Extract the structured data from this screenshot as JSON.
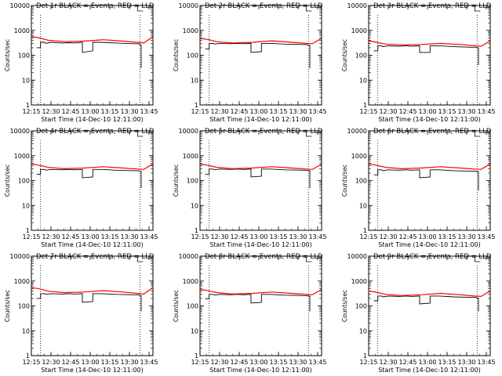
{
  "common": {
    "ylabel": "Counts/sec",
    "xlabel": "Start Time (14-Dec-10 12:11:00)",
    "x_tick_labels": [
      "12:15",
      "12:30",
      "12:45",
      "13:00",
      "13:15",
      "13:30",
      "13:45"
    ],
    "y_tick_labels": [
      "1",
      "10",
      "100",
      "1000",
      "10000"
    ],
    "colors": {
      "events": "#000000",
      "lld": "#ff0000",
      "background": "#ffffff"
    }
  },
  "chart_data": [
    {
      "type": "line",
      "title": "Det 1r BLACK = Events, RED = LLD",
      "xlabel": "Start Time (14-Dec-10 12:11:00)",
      "ylabel": "Counts/sec",
      "x_range": [
        "12:15",
        "13:48"
      ],
      "ylim": [
        1,
        10000
      ],
      "y_scale": "log",
      "vlines": [
        "12:22",
        "13:38"
      ],
      "series": [
        {
          "name": "Events",
          "color": "#000000",
          "x": [
            "12:15",
            "12:19",
            "12:19",
            "12:22",
            "12:22",
            "12:25",
            "12:26",
            "12:30",
            "12:38",
            "12:44",
            "12:48",
            "12:54",
            "12:54",
            "13:02",
            "13:02",
            "13:09",
            "13:20",
            "13:33",
            "13:37",
            "13:38",
            "13:39",
            "13:39"
          ],
          "y": [
            null,
            200,
            200,
            200,
            330,
            330,
            300,
            330,
            310,
            320,
            310,
            330,
            130,
            150,
            330,
            330,
            310,
            290,
            290,
            260,
            260,
            30
          ]
        },
        {
          "name": "LLD",
          "color": "#ff0000",
          "x": [
            "12:15",
            "12:20",
            "12:28",
            "12:40",
            "12:55",
            "13:10",
            "13:25",
            "13:36",
            "13:41",
            "13:48"
          ],
          "y": [
            560,
            510,
            400,
            350,
            370,
            420,
            370,
            330,
            310,
            560
          ]
        }
      ]
    },
    {
      "type": "line",
      "title": "Det 2r BLACK = Events, RED = LLD",
      "xlabel": "Start Time (14-Dec-10 12:11:00)",
      "ylabel": "Counts/sec",
      "x_range": [
        "12:15",
        "13:48"
      ],
      "ylim": [
        1,
        10000
      ],
      "y_scale": "log",
      "vlines": [
        "12:22",
        "13:38"
      ],
      "series": [
        {
          "name": "Events",
          "color": "#000000",
          "x": [
            "12:15",
            "12:19",
            "12:19",
            "12:22",
            "12:22",
            "12:25",
            "12:26",
            "12:30",
            "12:38",
            "12:44",
            "12:48",
            "12:54",
            "12:54",
            "13:02",
            "13:02",
            "13:09",
            "13:20",
            "13:33",
            "13:37",
            "13:38",
            "13:39",
            "13:39"
          ],
          "y": [
            null,
            180,
            180,
            180,
            300,
            300,
            280,
            300,
            290,
            300,
            290,
            300,
            130,
            140,
            300,
            300,
            280,
            270,
            270,
            250,
            250,
            30
          ]
        },
        {
          "name": "LLD",
          "color": "#ff0000",
          "x": [
            "12:15",
            "12:20",
            "12:28",
            "12:40",
            "12:55",
            "13:10",
            "13:25",
            "13:36",
            "13:41",
            "13:48"
          ],
          "y": [
            480,
            440,
            350,
            310,
            330,
            380,
            330,
            300,
            290,
            480
          ]
        }
      ]
    },
    {
      "type": "line",
      "title": "Det 3r BLACK = Events, RED = LLD",
      "xlabel": "Start Time (14-Dec-10 12:11:00)",
      "ylabel": "Counts/sec",
      "x_range": [
        "12:15",
        "13:48"
      ],
      "ylim": [
        1,
        10000
      ],
      "y_scale": "log",
      "vlines": [
        "12:22",
        "13:38"
      ],
      "series": [
        {
          "name": "Events",
          "color": "#000000",
          "x": [
            "12:15",
            "12:19",
            "12:19",
            "12:22",
            "12:22",
            "12:25",
            "12:26",
            "12:30",
            "12:38",
            "12:44",
            "12:48",
            "12:54",
            "12:54",
            "13:02",
            "13:02",
            "13:09",
            "13:20",
            "13:33",
            "13:37",
            "13:38",
            "13:39",
            "13:39"
          ],
          "y": [
            null,
            150,
            150,
            150,
            240,
            240,
            220,
            240,
            230,
            240,
            230,
            240,
            130,
            130,
            240,
            240,
            220,
            210,
            210,
            200,
            200,
            40
          ]
        },
        {
          "name": "LLD",
          "color": "#ff0000",
          "x": [
            "12:15",
            "12:20",
            "12:28",
            "12:40",
            "12:55",
            "13:10",
            "13:25",
            "13:36",
            "13:41",
            "13:48"
          ],
          "y": [
            380,
            340,
            280,
            260,
            270,
            300,
            270,
            240,
            230,
            380
          ]
        }
      ]
    },
    {
      "type": "line",
      "title": "Det 4r BLACK = Events, RED = LLD",
      "xlabel": "Start Time (14-Dec-10 12:11:00)",
      "ylabel": "Counts/sec",
      "x_range": [
        "12:15",
        "13:48"
      ],
      "ylim": [
        1,
        10000
      ],
      "y_scale": "log",
      "vlines": [
        "12:22",
        "13:38"
      ],
      "series": [
        {
          "name": "Events",
          "color": "#000000",
          "x": [
            "12:15",
            "12:19",
            "12:19",
            "12:22",
            "12:22",
            "12:25",
            "12:26",
            "12:30",
            "12:38",
            "12:44",
            "12:48",
            "12:54",
            "12:54",
            "13:02",
            "13:02",
            "13:09",
            "13:20",
            "13:33",
            "13:37",
            "13:38",
            "13:39",
            "13:39"
          ],
          "y": [
            null,
            180,
            180,
            180,
            280,
            280,
            260,
            280,
            270,
            280,
            270,
            280,
            130,
            140,
            280,
            280,
            260,
            250,
            250,
            240,
            240,
            50
          ]
        },
        {
          "name": "LLD",
          "color": "#ff0000",
          "x": [
            "12:15",
            "12:20",
            "12:28",
            "12:40",
            "12:55",
            "13:10",
            "13:25",
            "13:36",
            "13:41",
            "13:48"
          ],
          "y": [
            470,
            420,
            340,
            300,
            320,
            360,
            320,
            290,
            280,
            470
          ]
        }
      ]
    },
    {
      "type": "line",
      "title": "Det 5r BLACK = Events, RED = LLD",
      "xlabel": "Start Time (14-Dec-10 12:11:00)",
      "ylabel": "Counts/sec",
      "x_range": [
        "12:15",
        "13:48"
      ],
      "ylim": [
        1,
        10000
      ],
      "y_scale": "log",
      "vlines": [
        "12:22",
        "13:38"
      ],
      "series": [
        {
          "name": "Events",
          "color": "#000000",
          "x": [
            "12:15",
            "12:19",
            "12:19",
            "12:22",
            "12:22",
            "12:25",
            "12:26",
            "12:30",
            "12:38",
            "12:44",
            "12:48",
            "12:54",
            "12:54",
            "13:02",
            "13:02",
            "13:09",
            "13:20",
            "13:33",
            "13:37",
            "13:38",
            "13:39",
            "13:39"
          ],
          "y": [
            null,
            180,
            180,
            180,
            290,
            290,
            270,
            290,
            280,
            290,
            280,
            290,
            140,
            150,
            290,
            290,
            270,
            260,
            260,
            250,
            250,
            50
          ]
        },
        {
          "name": "LLD",
          "color": "#ff0000",
          "x": [
            "12:15",
            "12:20",
            "12:28",
            "12:40",
            "12:55",
            "13:10",
            "13:25",
            "13:36",
            "13:41",
            "13:48"
          ],
          "y": [
            460,
            420,
            340,
            300,
            320,
            360,
            320,
            290,
            280,
            460
          ]
        }
      ]
    },
    {
      "type": "line",
      "title": "Det 6r BLACK = Events, RED = LLD",
      "xlabel": "Start Time (14-Dec-10 12:11:00)",
      "ylabel": "Counts/sec",
      "x_range": [
        "12:15",
        "13:48"
      ],
      "ylim": [
        1,
        10000
      ],
      "y_scale": "log",
      "vlines": [
        "12:22",
        "13:38"
      ],
      "series": [
        {
          "name": "Events",
          "color": "#000000",
          "x": [
            "12:15",
            "12:19",
            "12:19",
            "12:22",
            "12:22",
            "12:25",
            "12:26",
            "12:30",
            "12:38",
            "12:44",
            "12:48",
            "12:54",
            "12:54",
            "13:02",
            "13:02",
            "13:09",
            "13:20",
            "13:33",
            "13:37",
            "13:38",
            "13:39",
            "13:39"
          ],
          "y": [
            null,
            170,
            170,
            170,
            270,
            270,
            250,
            270,
            260,
            270,
            260,
            270,
            130,
            140,
            270,
            270,
            250,
            240,
            240,
            230,
            230,
            40
          ]
        },
        {
          "name": "LLD",
          "color": "#ff0000",
          "x": [
            "12:15",
            "12:20",
            "12:28",
            "12:40",
            "12:55",
            "13:10",
            "13:25",
            "13:36",
            "13:41",
            "13:48"
          ],
          "y": [
            470,
            420,
            340,
            300,
            320,
            360,
            320,
            290,
            280,
            470
          ]
        }
      ]
    },
    {
      "type": "line",
      "title": "Det 7r BLACK = Events, RED = LLD",
      "xlabel": "Start Time (14-Dec-10 12:11:00)",
      "ylabel": "Counts/sec",
      "x_range": [
        "12:15",
        "13:48"
      ],
      "ylim": [
        1,
        10000
      ],
      "y_scale": "log",
      "vlines": [
        "12:22",
        "13:38"
      ],
      "series": [
        {
          "name": "Events",
          "color": "#000000",
          "x": [
            "12:15",
            "12:19",
            "12:19",
            "12:22",
            "12:22",
            "12:25",
            "12:26",
            "12:30",
            "12:38",
            "12:44",
            "12:48",
            "12:54",
            "12:54",
            "13:02",
            "13:02",
            "13:09",
            "13:20",
            "13:33",
            "13:37",
            "13:38",
            "13:39",
            "13:39"
          ],
          "y": [
            null,
            200,
            200,
            200,
            310,
            310,
            290,
            310,
            300,
            310,
            300,
            310,
            140,
            150,
            310,
            310,
            290,
            280,
            280,
            260,
            260,
            60
          ]
        },
        {
          "name": "LLD",
          "color": "#ff0000",
          "x": [
            "12:15",
            "12:20",
            "12:28",
            "12:40",
            "12:55",
            "13:10",
            "13:25",
            "13:36",
            "13:41",
            "13:48"
          ],
          "y": [
            540,
            500,
            390,
            340,
            360,
            410,
            360,
            320,
            300,
            540
          ]
        }
      ]
    },
    {
      "type": "line",
      "title": "Det 8r BLACK = Events, RED = LLD",
      "xlabel": "Start Time (14-Dec-10 12:11:00)",
      "ylabel": "Counts/sec",
      "x_range": [
        "12:15",
        "13:48"
      ],
      "ylim": [
        1,
        10000
      ],
      "y_scale": "log",
      "vlines": [
        "12:22",
        "13:38"
      ],
      "series": [
        {
          "name": "Events",
          "color": "#000000",
          "x": [
            "12:15",
            "12:19",
            "12:19",
            "12:22",
            "12:22",
            "12:25",
            "12:26",
            "12:30",
            "12:38",
            "12:44",
            "12:48",
            "12:54",
            "12:54",
            "13:02",
            "13:02",
            "13:09",
            "13:20",
            "13:33",
            "13:37",
            "13:38",
            "13:39",
            "13:39"
          ],
          "y": [
            null,
            190,
            190,
            190,
            290,
            290,
            270,
            290,
            280,
            290,
            280,
            290,
            130,
            140,
            290,
            290,
            270,
            260,
            260,
            250,
            250,
            60
          ]
        },
        {
          "name": "LLD",
          "color": "#ff0000",
          "x": [
            "12:15",
            "12:20",
            "12:28",
            "12:40",
            "12:55",
            "13:10",
            "13:25",
            "13:36",
            "13:41",
            "13:48"
          ],
          "y": [
            460,
            420,
            340,
            300,
            320,
            360,
            320,
            290,
            280,
            460
          ]
        }
      ]
    },
    {
      "type": "line",
      "title": "Det 9r BLACK = Events, RED = LLD",
      "xlabel": "Start Time (14-Dec-10 12:11:00)",
      "ylabel": "Counts/sec",
      "x_range": [
        "12:15",
        "13:48"
      ],
      "ylim": [
        1,
        10000
      ],
      "y_scale": "log",
      "vlines": [
        "12:22",
        "13:38"
      ],
      "series": [
        {
          "name": "Events",
          "color": "#000000",
          "x": [
            "12:15",
            "12:19",
            "12:19",
            "12:22",
            "12:22",
            "12:25",
            "12:26",
            "12:30",
            "12:38",
            "12:44",
            "12:48",
            "12:54",
            "12:54",
            "13:02",
            "13:02",
            "13:09",
            "13:20",
            "13:33",
            "13:37",
            "13:38",
            "13:39",
            "13:39"
          ],
          "y": [
            null,
            160,
            160,
            160,
            250,
            250,
            230,
            250,
            240,
            250,
            240,
            250,
            120,
            130,
            250,
            250,
            230,
            220,
            220,
            210,
            210,
            60
          ]
        },
        {
          "name": "LLD",
          "color": "#ff0000",
          "x": [
            "12:15",
            "12:20",
            "12:28",
            "12:40",
            "12:55",
            "13:10",
            "13:25",
            "13:36",
            "13:41",
            "13:48"
          ],
          "y": [
            400,
            360,
            290,
            260,
            280,
            320,
            280,
            250,
            240,
            400
          ]
        }
      ]
    }
  ]
}
